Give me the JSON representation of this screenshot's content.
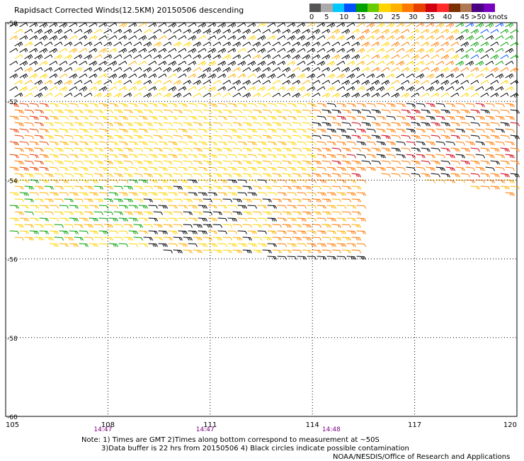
{
  "title": "Rapidsact Corrected Winds(12.5KM) 20150506 descending",
  "legend": {
    "colors": [
      "#555555",
      "#aaaaaa",
      "#00c8ff",
      "#0050ff",
      "#00a000",
      "#66cc00",
      "#ffd400",
      "#ffb000",
      "#ff7a00",
      "#e84000",
      "#d00010",
      "#ff2a2a",
      "#7a3000",
      "#b07850",
      "#4a0080",
      "#7a00c0"
    ],
    "labels": [
      "0",
      "5",
      "10",
      "15",
      "20",
      "25",
      "30",
      "35",
      "40",
      "45",
      ">50 knots"
    ]
  },
  "axes": {
    "longitude_ticks": [
      "105",
      "108",
      "111",
      "114",
      "117",
      "120"
    ],
    "latitude_ticks": [
      "-50",
      "-52",
      "-54",
      "-56",
      "-58",
      "-60"
    ],
    "time_labels": [
      "14:47",
      "14:47",
      "14:48"
    ],
    "lon_range": [
      105,
      120
    ],
    "lat_range": [
      -50,
      -60
    ],
    "time_color": "#800080",
    "grid": "dotted"
  },
  "footer": {
    "note_line1": "Note: 1) Times are GMT 2)Times along bottom correspond to measurement at ~50S",
    "note_line2": "3)Data buffer is 22 hrs from 20150506 4) Black circles indicate possible contamination",
    "credit": "NOAA/NESDIS/Office of Research and Applications"
  }
}
